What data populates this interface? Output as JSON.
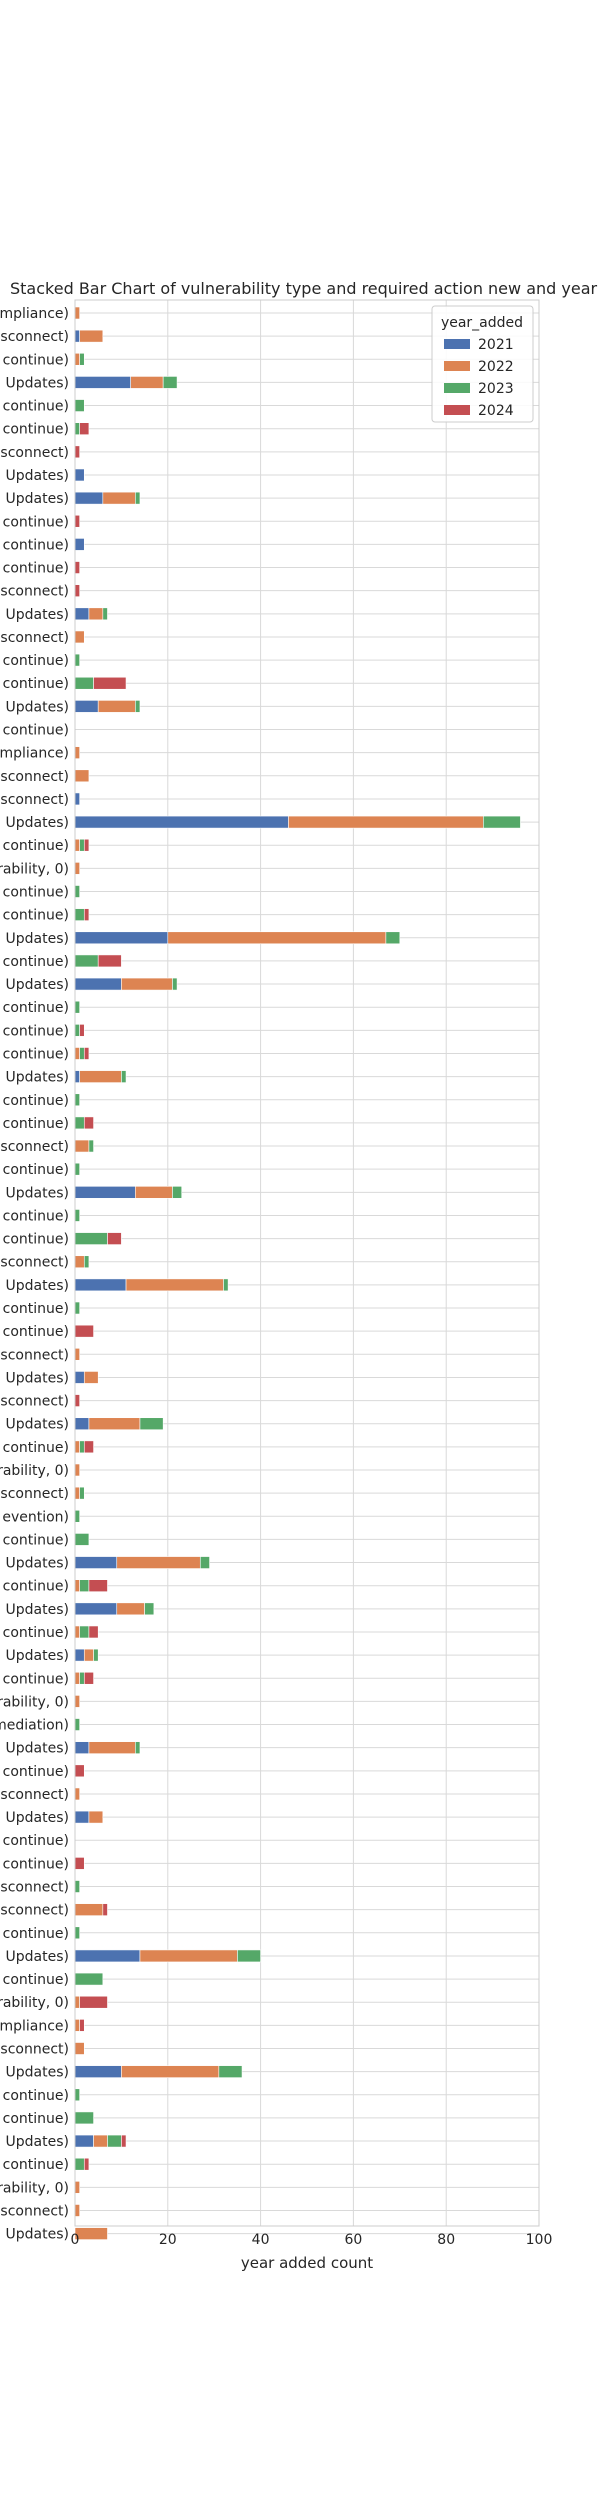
{
  "chart_data": {
    "type": "bar",
    "orientation": "horizontal",
    "stacked": true,
    "title": "Stacked Bar Chart of  vulnerability type and required action new and year added",
    "xlabel": "year added count",
    "ylabel": "",
    "xlim": [
      0,
      100
    ],
    "xticks": [
      0,
      20,
      40,
      60,
      80,
      100
    ],
    "grid": true,
    "legend": {
      "title": "year_added",
      "position": "top-right"
    },
    "categories": [
      "mpliance)",
      "sconnect)",
      "continue)",
      "Updates)",
      "continue)",
      "continue)",
      "sconnect)",
      "Updates)",
      "Updates)",
      "continue)",
      "continue)",
      "continue)",
      "sconnect)",
      "Updates)",
      "sconnect)",
      "continue)",
      "continue)",
      "Updates)",
      "continue)",
      "mpliance)",
      "sconnect)",
      "sconnect)",
      "Updates)",
      "continue)",
      "rability, 0)",
      "continue)",
      "continue)",
      "Updates)",
      "continue)",
      "Updates)",
      "continue)",
      "continue)",
      "continue)",
      "Updates)",
      "continue)",
      "continue)",
      "sconnect)",
      "continue)",
      "Updates)",
      "continue)",
      "continue)",
      "sconnect)",
      "Updates)",
      "continue)",
      "continue)",
      "sconnect)",
      "Updates)",
      "sconnect)",
      "Updates)",
      "continue)",
      "rability, 0)",
      "sconnect)",
      "evention)",
      "continue)",
      "Updates)",
      "continue)",
      "Updates)",
      "continue)",
      "Updates)",
      "continue)",
      "rability, 0)",
      "mediation)",
      "Updates)",
      "continue)",
      "sconnect)",
      "Updates)",
      "continue)",
      "continue)",
      "sconnect)",
      "sconnect)",
      "continue)",
      "Updates)",
      "continue)",
      "rability, 0)",
      "mpliance)",
      "sconnect)",
      "Updates)",
      "continue)",
      "continue)",
      "Updates)",
      "continue)",
      "rability, 0)",
      "sconnect)",
      "Updates)"
    ],
    "series": [
      {
        "name": "2021",
        "color": "#4c72b0",
        "values": [
          0,
          1,
          0,
          12,
          0,
          0,
          0,
          2,
          6,
          0,
          2,
          0,
          0,
          3,
          0,
          0,
          0,
          5,
          0,
          0,
          0,
          1,
          46,
          0,
          0,
          0,
          0,
          20,
          0,
          10,
          0,
          0,
          0,
          1,
          0,
          0,
          0,
          0,
          13,
          0,
          0,
          0,
          11,
          0,
          0,
          0,
          2,
          0,
          3,
          0,
          0,
          0,
          0,
          0,
          9,
          0,
          9,
          0,
          2,
          0,
          0,
          0,
          3,
          0,
          0,
          3,
          0,
          0,
          0,
          0,
          0,
          14,
          0,
          0,
          0,
          0,
          10,
          0,
          0,
          4,
          0,
          0,
          0,
          0
        ]
      },
      {
        "name": "2022",
        "color": "#dd8452",
        "values": [
          1,
          5,
          1,
          7,
          0,
          0,
          0,
          0,
          7,
          0,
          0,
          0,
          0,
          3,
          2,
          0,
          0,
          8,
          0,
          1,
          3,
          0,
          42,
          1,
          1,
          0,
          0,
          47,
          0,
          11,
          0,
          0,
          1,
          9,
          0,
          0,
          3,
          0,
          8,
          0,
          0,
          2,
          21,
          0,
          0,
          1,
          3,
          0,
          11,
          1,
          1,
          1,
          0,
          0,
          18,
          1,
          6,
          1,
          2,
          1,
          1,
          0,
          10,
          0,
          1,
          3,
          0,
          0,
          0,
          6,
          0,
          21,
          0,
          1,
          1,
          2,
          21,
          0,
          0,
          3,
          0,
          1,
          1,
          7
        ]
      },
      {
        "name": "2023",
        "color": "#55a868",
        "values": [
          0,
          0,
          1,
          3,
          2,
          1,
          0,
          0,
          1,
          0,
          0,
          0,
          0,
          1,
          0,
          1,
          4,
          1,
          0,
          0,
          0,
          0,
          8,
          1,
          0,
          1,
          2,
          3,
          5,
          1,
          1,
          1,
          1,
          1,
          1,
          2,
          1,
          1,
          2,
          1,
          7,
          1,
          1,
          1,
          0,
          0,
          0,
          0,
          5,
          1,
          0,
          1,
          1,
          3,
          2,
          2,
          2,
          2,
          1,
          1,
          0,
          1,
          1,
          0,
          0,
          0,
          0,
          0,
          1,
          0,
          1,
          5,
          6,
          0,
          0,
          0,
          5,
          1,
          4,
          3,
          2,
          0,
          0,
          0
        ]
      },
      {
        "name": "2024",
        "color": "#c44e52",
        "values": [
          0,
          0,
          0,
          0,
          0,
          2,
          1,
          0,
          0,
          1,
          0,
          1,
          1,
          0,
          0,
          0,
          7,
          0,
          0,
          0,
          0,
          0,
          0,
          1,
          0,
          0,
          1,
          0,
          5,
          0,
          0,
          1,
          1,
          0,
          0,
          2,
          0,
          0,
          0,
          0,
          3,
          0,
          0,
          0,
          4,
          0,
          0,
          1,
          0,
          2,
          0,
          0,
          0,
          0,
          0,
          4,
          0,
          2,
          0,
          2,
          0,
          0,
          0,
          2,
          0,
          0,
          0,
          2,
          0,
          1,
          0,
          0,
          0,
          6,
          1,
          0,
          0,
          0,
          0,
          1,
          1,
          0,
          0,
          0
        ]
      }
    ]
  }
}
